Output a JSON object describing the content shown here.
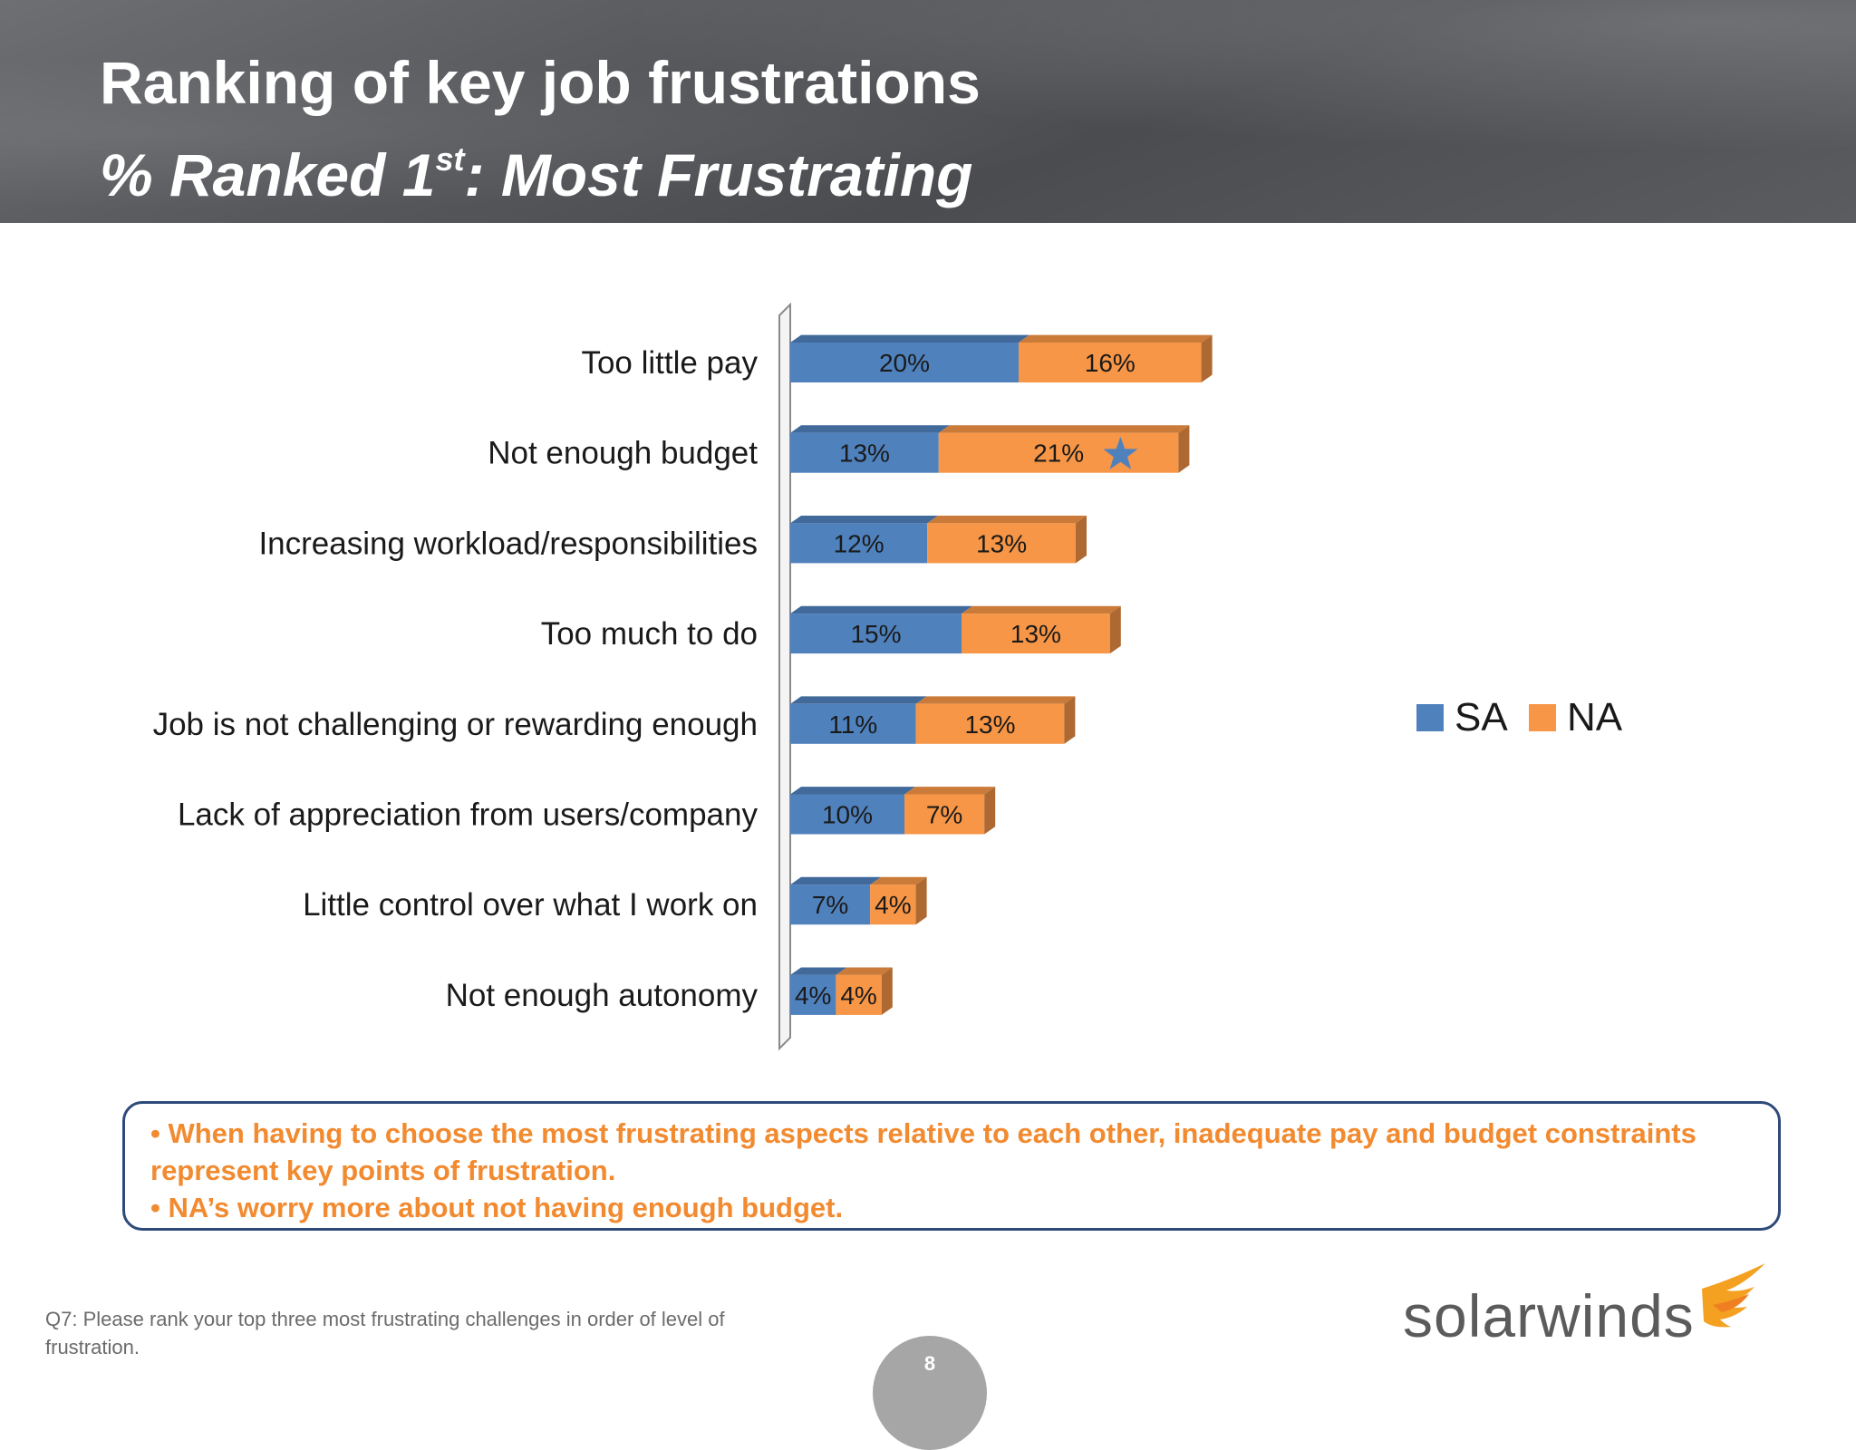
{
  "header": {
    "title_line1": "Ranking of key job frustrations",
    "title_line2_pre": "% Ranked 1",
    "title_line2_sup": "st",
    "title_line2_post": ":  Most Frustrating"
  },
  "chart_data": {
    "type": "bar",
    "orientation": "horizontal",
    "stacked": true,
    "categories": [
      "Too little pay",
      "Not enough budget",
      "Increasing workload/responsibilities",
      "Too much to do",
      "Job is not challenging or rewarding enough",
      "Lack of appreciation from users/company",
      "Little control over what I work on",
      "Not enough autonomy"
    ],
    "series": [
      {
        "name": "SA",
        "color": "#4f81bd",
        "values": [
          20,
          13,
          12,
          15,
          11,
          10,
          7,
          4
        ],
        "labels": [
          "20%",
          "13%",
          "12%",
          "15%",
          "11%",
          "10%",
          "7%",
          "4%"
        ]
      },
      {
        "name": "NA",
        "color": "#f79646",
        "values": [
          16,
          21,
          13,
          13,
          13,
          7,
          4,
          4
        ],
        "labels": [
          "16%",
          "21%",
          "13%",
          "13%",
          "13%",
          "7%",
          "4%",
          "4%"
        ]
      }
    ],
    "annotation": {
      "type": "star-icon",
      "category_index": 1,
      "series": "NA",
      "color": "#4f81bd"
    },
    "legend_position": "right",
    "grid": false
  },
  "legend": {
    "sa_label": "SA",
    "na_label": "NA"
  },
  "callout": {
    "point1": "• When having to choose the most frustrating aspects relative to each other, inadequate pay and budget constraints represent key points of frustration.",
    "point2": "• NA’s worry more about not having enough budget."
  },
  "footnote": "Q7: Please rank your top three most frustrating challenges in order of level of frustration.",
  "logo_text": "solarwinds",
  "page_number": "8"
}
